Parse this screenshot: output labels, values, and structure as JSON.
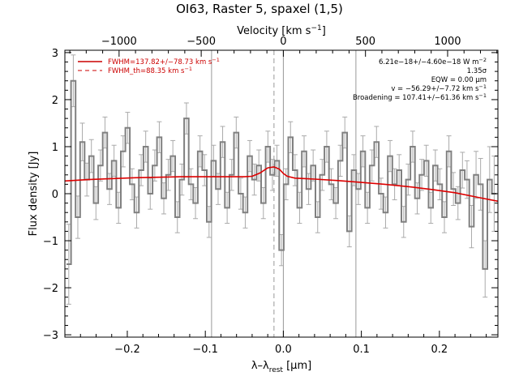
{
  "chart_data": {
    "type": "line",
    "title": "OI63, Raster 5, spaxel (1,5)",
    "xlabel": "λ–λ",
    "xlabel_sub": "rest",
    "xlabel_unit": " [μm]",
    "ylabel": "Flux density [Jy]",
    "top_axis_label": "Velocity [km s",
    "top_axis_label_sup": "−1",
    "top_axis_label_end": "]",
    "xlim": [
      -0.28,
      0.275
    ],
    "ylim": [
      -3.05,
      3.05
    ],
    "x_ticks": [
      -0.2,
      -0.1,
      0.0,
      0.1,
      0.2
    ],
    "x_tick_labels": [
      "−0.2",
      "−0.1",
      "0.0",
      "0.1",
      "0.2"
    ],
    "y_ticks": [
      -3,
      -2,
      -1,
      0,
      1,
      2,
      3
    ],
    "y_tick_labels": [
      "−3",
      "−2",
      "−1",
      "0",
      "1",
      "2",
      "3"
    ],
    "top_ticks_kms": [
      -1000,
      -500,
      0,
      500,
      1000
    ],
    "top_tick_labels": [
      "−1000",
      "−500",
      "0",
      "500",
      "1000"
    ],
    "kms_per_um": 4750,
    "vertical_lines": [
      -0.092,
      0.0,
      0.093
    ],
    "dashed_vertical_line": -0.012,
    "legend": [
      {
        "label": "FWHM=137.82+/−78.73 km s",
        "sup": "−1",
        "style": "solid",
        "color": "#cc0000"
      },
      {
        "label": "FWHM_th=88.35 km s",
        "sup": "−1",
        "style": "dashed",
        "color": "#cc0000"
      }
    ],
    "annotations": [
      {
        "text": "6.21e−18+/−4.60e−18 W m",
        "sup": "−2"
      },
      {
        "text": "1.35σ",
        "sup": ""
      },
      {
        "text": "EQW = 0.00 μm",
        "sup": ""
      },
      {
        "text": "v = −56.29+/−7.72 km s",
        "sup": "−1"
      },
      {
        "text": "Broadening = 107.41+/−61.36 km s",
        "sup": "−1"
      }
    ],
    "series": [
      {
        "type": "step",
        "color": "#808080",
        "error_color": "#aaaaaa",
        "x": [
          -0.275,
          -0.2692,
          -0.2634,
          -0.2576,
          -0.2518,
          -0.246,
          -0.2402,
          -0.2344,
          -0.2286,
          -0.2228,
          -0.217,
          -0.2112,
          -0.2054,
          -0.1996,
          -0.1938,
          -0.188,
          -0.1822,
          -0.1764,
          -0.1706,
          -0.1648,
          -0.159,
          -0.1532,
          -0.1474,
          -0.1416,
          -0.1358,
          -0.13,
          -0.1242,
          -0.1184,
          -0.1126,
          -0.1068,
          -0.101,
          -0.0952,
          -0.0894,
          -0.0836,
          -0.0778,
          -0.072,
          -0.0662,
          -0.0604,
          -0.0546,
          -0.0488,
          -0.043,
          -0.0372,
          -0.0314,
          -0.0256,
          -0.0198,
          -0.014,
          -0.0082,
          -0.0024,
          0.0034,
          0.0092,
          0.015,
          0.0208,
          0.0266,
          0.0324,
          0.0382,
          0.044,
          0.0498,
          0.0556,
          0.0614,
          0.0672,
          0.073,
          0.0788,
          0.0846,
          0.0904,
          0.0962,
          0.102,
          0.1078,
          0.1136,
          0.1194,
          0.1252,
          0.131,
          0.1368,
          0.1426,
          0.1484,
          0.1542,
          0.16,
          0.1658,
          0.1716,
          0.1774,
          0.1832,
          0.189,
          0.1948,
          0.2006,
          0.2064,
          0.2122,
          0.218,
          0.2238,
          0.2296,
          0.2354,
          0.2412,
          0.247,
          0.2528,
          0.2586,
          0.2644,
          0.2702
        ],
        "y": [
          -1.5,
          2.4,
          -0.5,
          1.1,
          0.3,
          0.8,
          -0.2,
          0.6,
          1.3,
          0.1,
          0.7,
          -0.3,
          0.9,
          1.4,
          0.2,
          -0.4,
          0.5,
          1.0,
          0.0,
          0.6,
          1.2,
          -0.1,
          0.4,
          0.8,
          -0.5,
          0.3,
          1.6,
          0.2,
          -0.2,
          0.9,
          0.5,
          -0.6,
          0.7,
          0.1,
          1.1,
          -0.3,
          0.4,
          1.3,
          0.0,
          -0.4,
          0.8,
          0.3,
          0.6,
          -0.2,
          1.0,
          0.4,
          0.7,
          -1.2,
          0.2,
          1.2,
          0.5,
          -0.3,
          0.9,
          0.1,
          0.6,
          -0.5,
          0.4,
          1.0,
          0.2,
          -0.2,
          0.7,
          1.3,
          -0.8,
          0.5,
          0.1,
          0.9,
          -0.3,
          0.6,
          1.1,
          0.0,
          -0.4,
          0.8,
          0.2,
          0.5,
          -0.6,
          0.3,
          1.0,
          -0.1,
          0.4,
          0.7,
          -0.3,
          0.6,
          0.2,
          -0.5,
          0.9,
          0.1,
          -0.2,
          0.5,
          0.3,
          -0.7,
          0.4,
          0.2,
          -1.6,
          0.3,
          0.0
        ],
        "errors": [
          0.85,
          0.55,
          0.45,
          0.4,
          0.35,
          0.35,
          0.35,
          0.33,
          0.33,
          0.33,
          0.33,
          0.33,
          0.33,
          0.33,
          0.33,
          0.33,
          0.33,
          0.33,
          0.33,
          0.33,
          0.33,
          0.33,
          0.33,
          0.33,
          0.33,
          0.33,
          0.33,
          0.33,
          0.33,
          0.33,
          0.33,
          0.33,
          0.33,
          0.33,
          0.33,
          0.33,
          0.33,
          0.33,
          0.33,
          0.33,
          0.33,
          0.33,
          0.33,
          0.33,
          0.33,
          0.33,
          0.33,
          0.33,
          0.33,
          0.33,
          0.33,
          0.33,
          0.33,
          0.33,
          0.33,
          0.33,
          0.33,
          0.33,
          0.33,
          0.33,
          0.33,
          0.33,
          0.33,
          0.33,
          0.33,
          0.33,
          0.33,
          0.33,
          0.33,
          0.33,
          0.33,
          0.33,
          0.33,
          0.33,
          0.33,
          0.33,
          0.33,
          0.33,
          0.33,
          0.33,
          0.33,
          0.33,
          0.33,
          0.33,
          0.33,
          0.35,
          0.35,
          0.38,
          0.4,
          0.45,
          0.5,
          0.55,
          0.6,
          0.7,
          0.8
        ]
      },
      {
        "type": "line",
        "color": "#dd0000",
        "x": [
          -0.28,
          -0.25,
          -0.22,
          -0.19,
          -0.16,
          -0.13,
          -0.1,
          -0.07,
          -0.05,
          -0.04,
          -0.03,
          -0.02,
          -0.012,
          -0.005,
          0.0,
          0.005,
          0.015,
          0.04,
          0.07,
          0.1,
          0.13,
          0.16,
          0.19,
          0.22,
          0.25,
          0.275
        ],
        "y": [
          0.27,
          0.3,
          0.32,
          0.34,
          0.35,
          0.36,
          0.36,
          0.36,
          0.36,
          0.37,
          0.44,
          0.55,
          0.57,
          0.52,
          0.43,
          0.37,
          0.33,
          0.31,
          0.28,
          0.24,
          0.2,
          0.15,
          0.09,
          0.02,
          -0.08,
          -0.16
        ]
      }
    ]
  }
}
